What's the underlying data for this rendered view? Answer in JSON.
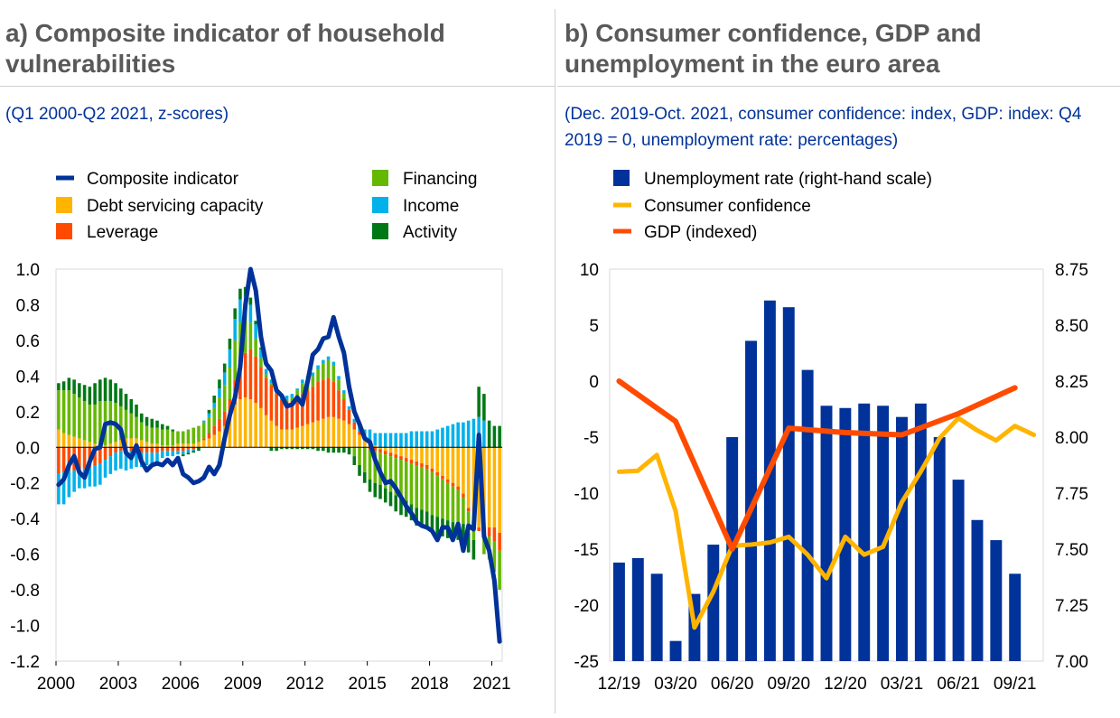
{
  "panel_a": {
    "title": "a) Composite indicator of household vulnerabilities",
    "subtitle": "(Q1 2000-Q2 2021, z-scores)",
    "legend": [
      {
        "label": "Composite indicator",
        "kind": "line"
      },
      {
        "label": "Debt servicing capacity",
        "kind": "box"
      },
      {
        "label": "Leverage",
        "kind": "box"
      },
      {
        "label": "Financing",
        "kind": "box"
      },
      {
        "label": "Income",
        "kind": "box"
      },
      {
        "label": "Activity",
        "kind": "box"
      }
    ]
  },
  "panel_b": {
    "title": "b) Consumer confidence, GDP and unemployment in the euro area",
    "subtitle": "(Dec. 2019-Oct. 2021, consumer confidence: index, GDP: index: Q4 2019 = 0, unemployment rate: percentages)",
    "legend": [
      {
        "label": "Unemployment rate (right-hand scale)",
        "kind": "box"
      },
      {
        "label": "Consumer confidence",
        "kind": "line"
      },
      {
        "label": "GDP (indexed)",
        "kind": "line"
      }
    ]
  },
  "colors": {
    "composite": "#003299",
    "debt_servicing": "#FFB400",
    "leverage": "#FF4B00",
    "financing": "#65B800",
    "income": "#00B1EA",
    "activity": "#007816",
    "unemployment": "#003299",
    "confidence": "#FFB400",
    "gdp": "#FF4B00"
  },
  "chart_data": [
    {
      "type": "bar",
      "stacked": true,
      "ylim": [
        -1.2,
        1.0
      ],
      "yticks": [
        "1.0",
        "0.8",
        "0.6",
        "0.4",
        "0.2",
        "0.0",
        "-0.2",
        "-0.4",
        "-0.6",
        "-0.8",
        "-1.0",
        "-1.2"
      ],
      "xticks": [
        "2000",
        "2003",
        "2006",
        "2009",
        "2012",
        "2015",
        "2018",
        "2021"
      ],
      "x_start": 2000.0,
      "x_step": 0.25,
      "series": [
        {
          "name": "Debt servicing capacity",
          "values": [
            0.1,
            0.08,
            0.07,
            0.06,
            0.05,
            0.04,
            0.03,
            0.02,
            0.02,
            0.01,
            0.02,
            0.03,
            0.04,
            0.05,
            0.05,
            0.05,
            0.04,
            0.03,
            0.02,
            0.02,
            0.01,
            0.01,
            0.01,
            0.02,
            0.02,
            0.02,
            0.02,
            0.03,
            0.04,
            0.05,
            0.07,
            0.09,
            0.12,
            0.17,
            0.24,
            0.27,
            0.28,
            0.27,
            0.25,
            0.22,
            0.18,
            0.15,
            0.12,
            0.1,
            0.1,
            0.1,
            0.11,
            0.12,
            0.13,
            0.14,
            0.15,
            0.16,
            0.17,
            0.17,
            0.16,
            0.15,
            0.13,
            0.1,
            0.07,
            0.05,
            0.03,
            0.01,
            -0.01,
            -0.02,
            -0.03,
            -0.04,
            -0.05,
            -0.06,
            -0.07,
            -0.08,
            -0.09,
            -0.1,
            -0.12,
            -0.14,
            -0.16,
            -0.18,
            -0.2,
            -0.22,
            -0.26,
            -0.34,
            -0.4,
            -0.45,
            -0.48,
            -0.45,
            -0.45,
            -0.48
          ]
        },
        {
          "name": "Leverage",
          "values": [
            -0.15,
            -0.14,
            -0.13,
            -0.13,
            -0.12,
            -0.12,
            -0.11,
            -0.1,
            -0.09,
            -0.07,
            -0.05,
            -0.03,
            -0.02,
            -0.02,
            -0.02,
            -0.02,
            -0.03,
            -0.03,
            -0.03,
            -0.03,
            -0.02,
            -0.02,
            -0.02,
            -0.02,
            -0.02,
            -0.01,
            -0.01,
            0.0,
            0.01,
            0.03,
            0.05,
            0.07,
            0.08,
            0.1,
            0.14,
            0.2,
            0.25,
            0.28,
            0.26,
            0.23,
            0.21,
            0.2,
            0.18,
            0.17,
            0.16,
            0.16,
            0.17,
            0.18,
            0.19,
            0.2,
            0.22,
            0.22,
            0.22,
            0.2,
            0.16,
            0.12,
            0.08,
            0.04,
            0.02,
            0.0,
            -0.01,
            -0.02,
            -0.02,
            -0.02,
            -0.02,
            -0.02,
            -0.02,
            -0.02,
            -0.02,
            -0.02,
            -0.02,
            -0.02,
            -0.02,
            -0.02,
            -0.02,
            -0.02,
            -0.02,
            -0.02,
            -0.02,
            -0.02,
            -0.02,
            -0.02,
            -0.02,
            -0.05,
            -0.08,
            -0.1
          ]
        },
        {
          "name": "Financing",
          "values": [
            0.22,
            0.24,
            0.25,
            0.24,
            0.23,
            0.22,
            0.21,
            0.22,
            0.24,
            0.25,
            0.24,
            0.22,
            0.19,
            0.16,
            0.14,
            0.12,
            0.1,
            0.09,
            0.09,
            0.09,
            0.09,
            0.09,
            0.08,
            0.07,
            0.07,
            0.08,
            0.09,
            0.09,
            0.09,
            0.09,
            0.1,
            0.12,
            0.15,
            0.18,
            0.22,
            0.23,
            0.2,
            0.15,
            0.1,
            0.05,
            0.02,
            0.01,
            0.0,
            0.0,
            0.01,
            0.02,
            0.04,
            0.06,
            0.06,
            0.06,
            0.07,
            0.09,
            0.1,
            0.09,
            0.06,
            0.03,
            0.0,
            -0.05,
            -0.1,
            -0.14,
            -0.17,
            -0.18,
            -0.18,
            -0.19,
            -0.2,
            -0.21,
            -0.22,
            -0.22,
            -0.23,
            -0.24,
            -0.24,
            -0.24,
            -0.24,
            -0.23,
            -0.22,
            -0.21,
            -0.2,
            -0.18,
            -0.15,
            -0.12,
            -0.1,
            0.01,
            -0.1,
            -0.13,
            -0.17,
            -0.22
          ]
        },
        {
          "name": "Income",
          "values": [
            -0.17,
            -0.18,
            -0.15,
            -0.12,
            -0.11,
            -0.11,
            -0.11,
            -0.12,
            -0.12,
            -0.1,
            -0.1,
            -0.1,
            -0.1,
            -0.11,
            -0.1,
            -0.09,
            -0.08,
            -0.07,
            -0.06,
            -0.05,
            -0.04,
            -0.03,
            -0.03,
            -0.02,
            -0.02,
            -0.02,
            -0.01,
            0.0,
            0.01,
            0.02,
            0.03,
            0.05,
            0.07,
            0.1,
            0.12,
            0.13,
            0.12,
            0.1,
            0.08,
            0.05,
            0.03,
            0.02,
            0.02,
            0.02,
            0.02,
            0.02,
            0.01,
            0.02,
            0.02,
            0.02,
            0.02,
            0.02,
            0.02,
            0.02,
            0.02,
            0.02,
            0.02,
            0.02,
            0.03,
            0.05,
            0.07,
            0.07,
            0.08,
            0.08,
            0.08,
            0.08,
            0.08,
            0.08,
            0.09,
            0.09,
            0.09,
            0.09,
            0.09,
            0.1,
            0.11,
            0.12,
            0.13,
            0.14,
            0.14,
            0.15,
            0.16,
            0.16,
            0.15,
            0.0,
            0.0,
            0.0
          ]
        },
        {
          "name": "Activity",
          "values": [
            0.04,
            0.05,
            0.07,
            0.08,
            0.08,
            0.09,
            0.1,
            0.12,
            0.12,
            0.13,
            0.12,
            0.11,
            0.1,
            0.09,
            0.08,
            0.07,
            0.05,
            0.05,
            0.05,
            0.04,
            0.03,
            0.02,
            0.01,
            0.0,
            -0.01,
            -0.01,
            -0.01,
            -0.02,
            0.0,
            0.02,
            0.04,
            0.05,
            0.05,
            0.06,
            0.06,
            0.06,
            0.05,
            0.04,
            0.02,
            0.01,
            0.0,
            -0.02,
            -0.02,
            -0.01,
            -0.01,
            -0.01,
            -0.01,
            -0.01,
            -0.01,
            -0.01,
            -0.02,
            -0.02,
            -0.03,
            -0.03,
            -0.03,
            -0.03,
            -0.04,
            -0.05,
            -0.06,
            -0.06,
            -0.07,
            -0.08,
            -0.08,
            -0.08,
            -0.08,
            -0.09,
            -0.09,
            -0.09,
            -0.09,
            -0.1,
            -0.1,
            -0.1,
            -0.1,
            -0.1,
            -0.1,
            -0.1,
            -0.1,
            -0.1,
            -0.11,
            -0.11,
            -0.11,
            0.17,
            0.15,
            0.15,
            0.12,
            0.12
          ]
        }
      ]
    },
    {
      "type": "line",
      "name": "Composite indicator",
      "x": [
        2000.0,
        2000.25,
        2000.5,
        2000.75,
        2001.0,
        2001.25,
        2001.5,
        2001.75,
        2002.0,
        2002.25,
        2002.5,
        2002.75,
        2003.0,
        2003.25,
        2003.5,
        2003.75,
        2004.0,
        2004.25,
        2004.5,
        2004.75,
        2005.0,
        2005.25,
        2005.5,
        2005.75,
        2006.0,
        2006.25,
        2006.5,
        2006.75,
        2007.0,
        2007.25,
        2007.5,
        2007.75,
        2008.0,
        2008.25,
        2008.5,
        2008.75,
        2009.0,
        2009.25,
        2009.5,
        2009.75,
        2010.0,
        2010.25,
        2010.5,
        2010.75,
        2011.0,
        2011.25,
        2011.5,
        2011.75,
        2012.0,
        2012.25,
        2012.5,
        2012.75,
        2013.0,
        2013.25,
        2013.5,
        2013.75,
        2014.0,
        2014.25,
        2014.5,
        2014.75,
        2015.0,
        2015.25,
        2015.5,
        2015.75,
        2016.0,
        2016.25,
        2016.5,
        2016.75,
        2017.0,
        2017.25,
        2017.5,
        2017.75,
        2018.0,
        2018.25,
        2018.5,
        2018.75,
        2019.0,
        2019.25,
        2019.5,
        2019.75,
        2020.0,
        2020.25,
        2020.5,
        2020.75,
        2021.0,
        2021.25
      ],
      "y": [
        -0.21,
        -0.18,
        -0.1,
        -0.05,
        -0.14,
        -0.17,
        -0.08,
        -0.01,
        0.0,
        0.13,
        0.14,
        0.13,
        0.1,
        -0.03,
        -0.06,
        0.01,
        -0.08,
        -0.13,
        -0.1,
        -0.09,
        -0.1,
        -0.07,
        -0.1,
        -0.06,
        -0.15,
        -0.17,
        -0.2,
        -0.19,
        -0.17,
        -0.11,
        -0.15,
        -0.1,
        0.05,
        0.18,
        0.28,
        0.45,
        0.8,
        1.0,
        0.88,
        0.62,
        0.47,
        0.43,
        0.32,
        0.29,
        0.23,
        0.24,
        0.28,
        0.24,
        0.37,
        0.52,
        0.55,
        0.61,
        0.62,
        0.73,
        0.62,
        0.53,
        0.34,
        0.2,
        0.13,
        0.05,
        0.03,
        -0.07,
        -0.14,
        -0.2,
        -0.19,
        -0.23,
        -0.28,
        -0.33,
        -0.37,
        -0.42,
        -0.44,
        -0.45,
        -0.47,
        -0.52,
        -0.45,
        -0.45,
        -0.52,
        -0.43,
        -0.58,
        -0.44,
        -0.46,
        0.07,
        -0.5,
        -0.58,
        -0.75,
        -1.09
      ],
      "ylim": [
        -1.2,
        1.0
      ]
    },
    {
      "type": "bar",
      "name": "Unemployment rate (right-hand scale)",
      "axis": "right",
      "categories": [
        "12/19",
        "01/20",
        "02/20",
        "03/20",
        "04/20",
        "05/20",
        "06/20",
        "07/20",
        "08/20",
        "09/20",
        "10/20",
        "11/20",
        "12/20",
        "01/21",
        "02/21",
        "03/21",
        "04/21",
        "05/21",
        "06/21",
        "07/21",
        "08/21",
        "09/21"
      ],
      "values": [
        7.44,
        7.46,
        7.39,
        7.09,
        7.3,
        7.52,
        8.0,
        8.43,
        8.61,
        8.58,
        8.3,
        8.14,
        8.13,
        8.15,
        8.14,
        8.09,
        8.15,
        8.0,
        7.81,
        7.63,
        7.54,
        7.39
      ],
      "ylim": [
        7.0,
        8.75
      ],
      "yticks": [
        "8.75",
        "8.50",
        "8.25",
        "8.00",
        "7.75",
        "7.50",
        "7.25",
        "7.00"
      ]
    },
    {
      "type": "line",
      "name": "Consumer confidence",
      "axis": "left",
      "x": [
        "12/19",
        "01/20",
        "02/20",
        "03/20",
        "04/20",
        "05/20",
        "06/20",
        "07/20",
        "08/20",
        "09/20",
        "10/20",
        "11/20",
        "12/20",
        "01/21",
        "02/21",
        "03/21",
        "04/21",
        "05/21",
        "06/21",
        "07/21",
        "08/21",
        "09/21",
        "10/21"
      ],
      "values": [
        -8.1,
        -8.0,
        -6.6,
        -11.6,
        -22.0,
        -18.8,
        -14.7,
        -14.6,
        -14.4,
        -13.9,
        -15.5,
        -17.6,
        -13.9,
        -15.5,
        -14.8,
        -10.8,
        -8.1,
        -5.1,
        -3.3,
        -4.4,
        -5.3,
        -4.0,
        -4.8
      ],
      "ylim": [
        -25,
        10
      ],
      "yticks": [
        "10",
        "5",
        "0",
        "-5",
        "-10",
        "-15",
        "-20",
        "-25"
      ]
    },
    {
      "type": "line",
      "name": "GDP (indexed)",
      "axis": "left",
      "x": [
        "12/19",
        "03/20",
        "06/20",
        "09/20",
        "12/20",
        "03/21",
        "06/21",
        "09/21"
      ],
      "values": [
        0.0,
        -3.6,
        -15.0,
        -4.2,
        -4.6,
        -4.8,
        -2.9,
        -0.6
      ],
      "xticks": [
        "12/19",
        "03/20",
        "06/20",
        "09/20",
        "12/20",
        "03/21",
        "06/21",
        "09/21"
      ]
    }
  ]
}
